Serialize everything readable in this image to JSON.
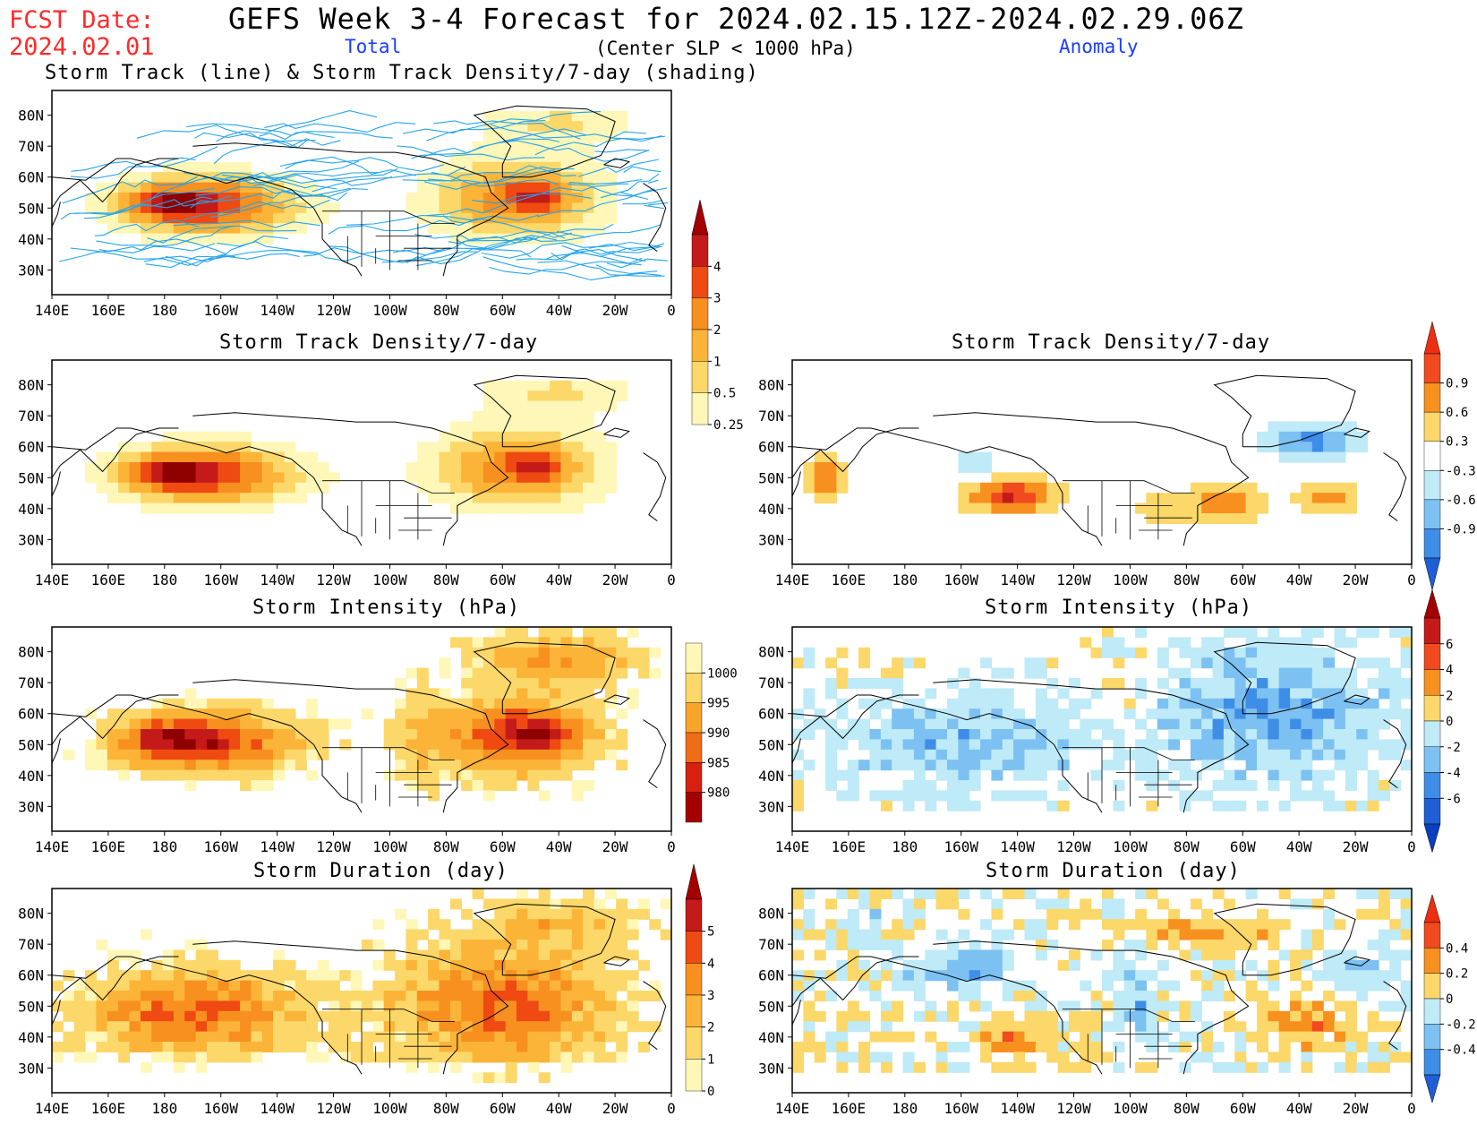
{
  "header": {
    "fcst_label": "FCST Date:",
    "fcst_date": "2024.02.01",
    "title": "GEFS Week 3-4 Forecast for 2024.02.15.12Z-2024.02.29.06Z",
    "total_label": "Total",
    "criterion": "(Center SLP < 1000 hPa)",
    "anomaly_label": "Anomaly"
  },
  "axes": {
    "lat_ticks": [
      "80N",
      "70N",
      "60N",
      "50N",
      "40N",
      "30N"
    ],
    "lon_ticks": [
      "140E",
      "160E",
      "180",
      "160W",
      "140W",
      "120W",
      "100W",
      "80W",
      "60W",
      "40W",
      "20W",
      "0"
    ]
  },
  "panels": [
    {
      "id": "track-total",
      "title": "Storm Track (line) & Storm Track Density/7-day (shading)",
      "column": "Total",
      "variable": "Storm Track Density/7-day"
    },
    {
      "id": "density-total",
      "title": "Storm Track Density/7-day",
      "column": "Total",
      "variable": "Storm Track Density/7-day"
    },
    {
      "id": "density-anom",
      "title": "Storm Track Density/7-day",
      "column": "Anomaly",
      "variable": "Storm Track Density/7-day"
    },
    {
      "id": "intensity-total",
      "title": "Storm Intensity (hPa)",
      "column": "Total",
      "variable": "Storm Intensity"
    },
    {
      "id": "intensity-anom",
      "title": "Storm Intensity (hPa)",
      "column": "Anomaly",
      "variable": "Storm Intensity"
    },
    {
      "id": "duration-total",
      "title": "Storm Duration (day)",
      "column": "Total",
      "variable": "Storm Duration"
    },
    {
      "id": "duration-anom",
      "title": "Storm Duration (day)",
      "column": "Anomaly",
      "variable": "Storm Duration"
    }
  ],
  "colorbars": {
    "density_total": {
      "labels": [
        "4",
        "3",
        "2",
        "1",
        "0.5",
        "0.25"
      ],
      "colors": [
        "#c41a1a",
        "#ee4a12",
        "#f7901f",
        "#fbb437",
        "#fcd769",
        "#fff7b8"
      ],
      "top": "#a40000"
    },
    "density_anom": {
      "labels": [
        "0.9",
        "0.6",
        "0.3",
        "-0.3",
        "-0.6",
        "-0.9"
      ],
      "colors": [
        "#f04a1e",
        "#f7901f",
        "#fcd769",
        "#ffffff",
        "#bfeaf7",
        "#7cc1f2",
        "#3e8ee8"
      ],
      "top": "#ee2e10",
      "bottom": "#1e5fd6"
    },
    "intensity_total": {
      "labels": [
        "1000",
        "995",
        "990",
        "985",
        "980"
      ],
      "colors": [
        "#fff7b8",
        "#fcd769",
        "#f7a52b",
        "#ef6d17",
        "#d7200f",
        "#a50000"
      ],
      "top": "#fff7b8",
      "bottom": "#a50000"
    },
    "intensity_anom": {
      "labels": [
        "6",
        "4",
        "2",
        "0",
        "-2",
        "-4",
        "-6"
      ],
      "colors": [
        "#c41a1a",
        "#f04a1e",
        "#f7901f",
        "#fcd769",
        "#bfeaf7",
        "#7cc1f2",
        "#3e8ee8",
        "#1e5fd6"
      ],
      "top": "#a40000",
      "bottom": "#0a3fbf"
    },
    "duration_total": {
      "labels": [
        "5",
        "4",
        "3",
        "2",
        "1",
        "0"
      ],
      "colors": [
        "#c41a1a",
        "#ee4a12",
        "#f7901f",
        "#fbb437",
        "#fcd769",
        "#fff7b8"
      ],
      "top": "#a40000"
    },
    "duration_anom": {
      "labels": [
        "0.4",
        "0.2",
        "0",
        "-0.2",
        "-0.4"
      ],
      "colors": [
        "#f04a1e",
        "#f7901f",
        "#fcd769",
        "#bfeaf7",
        "#7cc1f2",
        "#3e8ee8"
      ],
      "top": "#ee2e10",
      "bottom": "#1e5fd6"
    }
  },
  "color_scales": {
    "total": [
      "#ffffff",
      "#fff7b8",
      "#fcd769",
      "#fbb437",
      "#f7901f",
      "#ee4a12",
      "#c41a1a",
      "#8f0000"
    ],
    "anomaly": [
      "#1e5fd6",
      "#3e8ee8",
      "#7cc1f2",
      "#bfeaf7",
      "#ffffff",
      "#fcd769",
      "#f7901f",
      "#f04a1e",
      "#c41a1a"
    ]
  }
}
